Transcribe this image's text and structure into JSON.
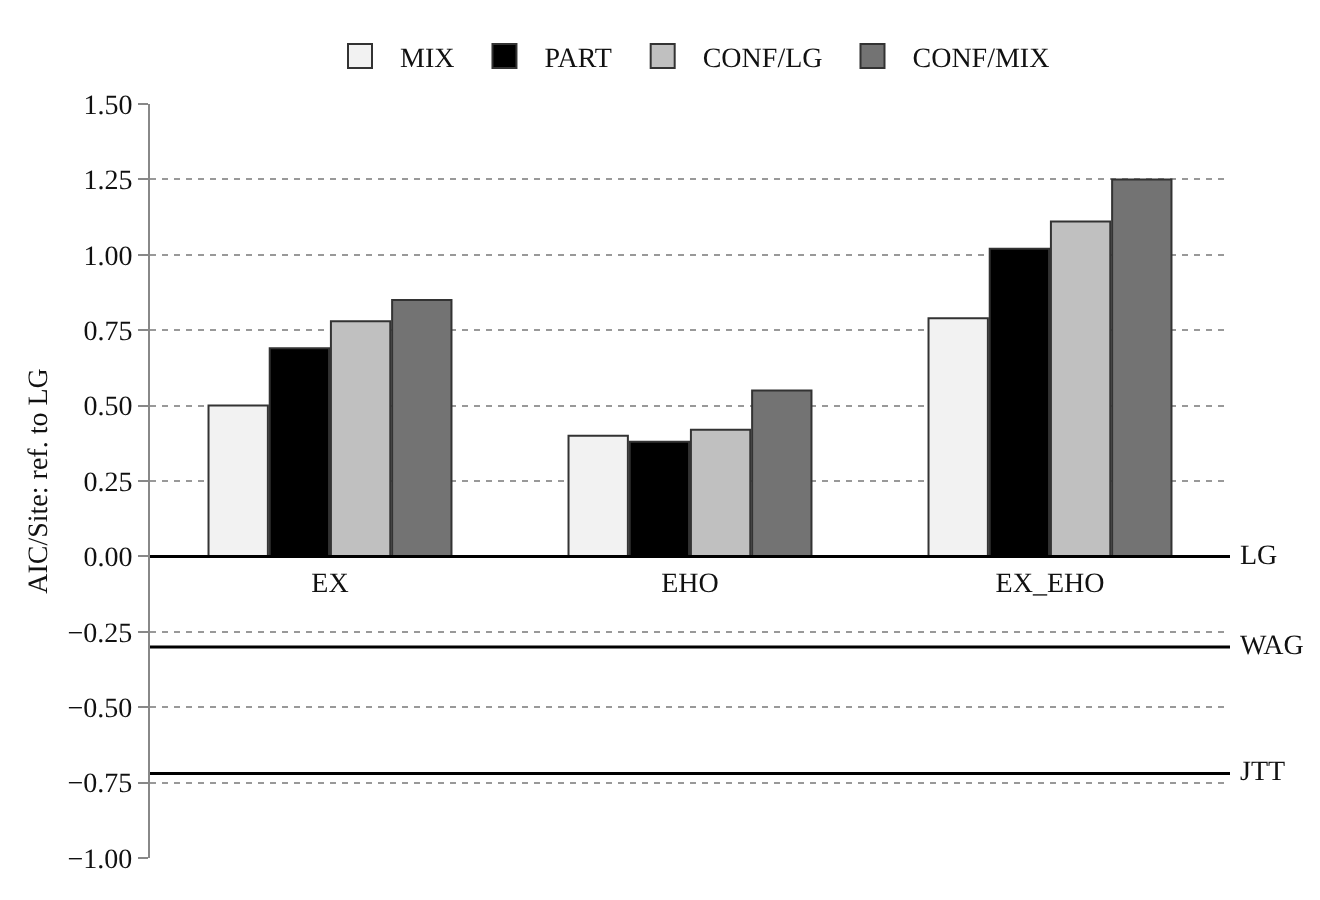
{
  "chart_data": {
    "type": "bar",
    "ylabel": "AIC/Site: ref. to LG",
    "categories": [
      "EX",
      "EHO",
      "EX_EHO"
    ],
    "series": [
      {
        "name": "MIX",
        "color": "#f2f2f2",
        "values": [
          0.5,
          0.4,
          0.79
        ]
      },
      {
        "name": "PART",
        "color": "#000000",
        "values": [
          0.69,
          0.38,
          1.02
        ]
      },
      {
        "name": "CONF/LG",
        "color": "#c0c0c0",
        "values": [
          0.78,
          0.42,
          1.11
        ]
      },
      {
        "name": "CONF/MIX",
        "color": "#737373",
        "values": [
          0.85,
          0.55,
          1.25
        ]
      }
    ],
    "ylim": [
      -1,
      1.5
    ],
    "yticks": [
      {
        "value": -1,
        "label": "−1.00"
      },
      {
        "value": -0.75,
        "label": "−0.75"
      },
      {
        "value": -0.5,
        "label": "−0.50"
      },
      {
        "value": -0.25,
        "label": "−0.25"
      },
      {
        "value": 0,
        "label": "0.00"
      },
      {
        "value": 0.25,
        "label": "0.25"
      },
      {
        "value": 0.5,
        "label": "0.50"
      },
      {
        "value": 0.75,
        "label": "0.75"
      },
      {
        "value": 1,
        "label": "1.00"
      },
      {
        "value": 1.25,
        "label": "1.25"
      },
      {
        "value": 1.5,
        "label": "1.50"
      }
    ],
    "grid": "y",
    "legend": "top",
    "ref_lines": [
      {
        "axis": "y",
        "value": 0,
        "label": "LG",
        "color": "#000000"
      },
      {
        "axis": "y",
        "value": -0.3,
        "label": "WAG",
        "color": "#000000"
      },
      {
        "axis": "y",
        "value": -0.72,
        "label": "JTT",
        "color": "#000000"
      }
    ]
  }
}
